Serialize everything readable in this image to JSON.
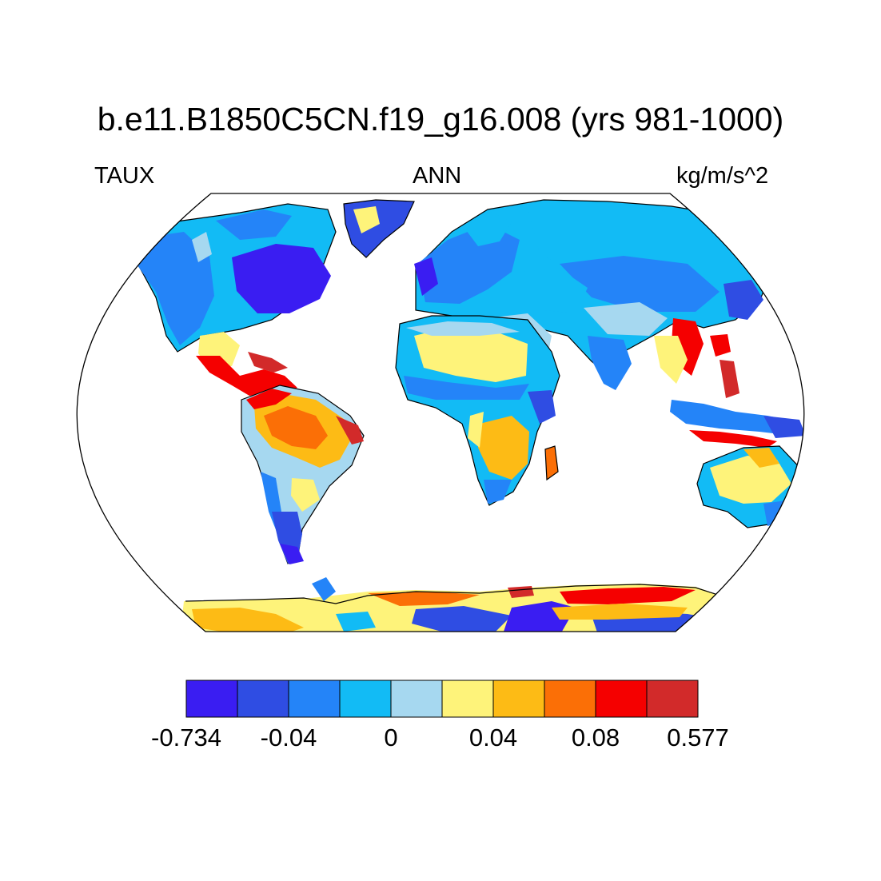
{
  "plot": {
    "title": "b.e11.B1850C5CN.f19_g16.008 (yrs 981-1000)",
    "variable": "TAUX",
    "season": "ANN",
    "units": "kg/m/s^2"
  },
  "map": {
    "projection": "Robinson",
    "ocean_color": "#ffffff",
    "coastline_color": "#000000"
  },
  "colorbar": {
    "colors": [
      "#3a1df2",
      "#2f4de3",
      "#2484f8",
      "#12bbf5",
      "#a6d8f0",
      "#fef37a",
      "#fdbb15",
      "#fb6f06",
      "#f50000",
      "#d22a2a"
    ],
    "labels": [
      "-0.734",
      "-0.04",
      "0",
      "0.04",
      "0.08",
      "0.577"
    ]
  },
  "regions": [
    {
      "name": "North America",
      "level": 2
    },
    {
      "name": "Eastern North America",
      "level": 0
    },
    {
      "name": "Greenland",
      "level": 1
    },
    {
      "name": "Central America",
      "level": 8
    },
    {
      "name": "Amazon",
      "level": 6
    },
    {
      "name": "Patagonia",
      "level": 1
    },
    {
      "name": "Europe",
      "level": 2
    },
    {
      "name": "Sahara",
      "level": 5
    },
    {
      "name": "Southern Africa",
      "level": 6
    },
    {
      "name": "Siberia",
      "level": 3
    },
    {
      "name": "Southeast Asia",
      "level": 8
    },
    {
      "name": "Australia",
      "level": 5
    },
    {
      "name": "Antarctica",
      "level": 7
    }
  ]
}
